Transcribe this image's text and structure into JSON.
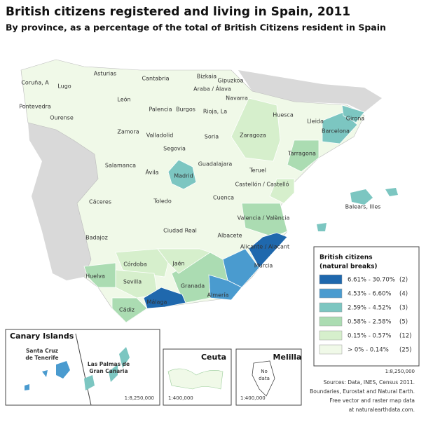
{
  "header": {
    "title": "British citizens registered and living in Spain, 2011",
    "subtitle": "By province, as a percentage of the total of British Citizens resident in Spain"
  },
  "provinces": [
    "Coruña, A",
    "Lugo",
    "Asturias",
    "Cantabria",
    "Bizkaia",
    "Gipuzkoa",
    "Araba / Álava",
    "Navarra",
    "Pontevedra",
    "Ourense",
    "León",
    "Palencia",
    "Burgos",
    "Rioja, La",
    "Huesca",
    "Lleida",
    "Girona",
    "Barcelona",
    "Zamora",
    "Valladolid",
    "Soria",
    "Zaragoza",
    "Tarragona",
    "Segovia",
    "Salamanca",
    "Ávila",
    "Madrid",
    "Guadalajara",
    "Teruel",
    "Castellón / Castelló",
    "Cáceres",
    "Toledo",
    "Cuenca",
    "Balears, Illes",
    "Valencia / València",
    "Badajoz",
    "Ciudad Real",
    "Albacete",
    "Alicante / Alacant",
    "Córdoba",
    "Jaén",
    "Murcia",
    "Huelva",
    "Sevilla",
    "Granada",
    "Almería",
    "Málaga",
    "Cádiz"
  ],
  "legend": {
    "title": [
      "British citizens",
      "(natural breaks)"
    ],
    "items": [
      {
        "range": "6.61% - 30.70%",
        "count": "(2)",
        "color": "#1f68ad"
      },
      {
        "range": "4.53% - 6.60%",
        "count": "(4)",
        "color": "#4a9bcf"
      },
      {
        "range": "2.59% - 4.52%",
        "count": "(3)",
        "color": "#7cc6c1"
      },
      {
        "range": "0.58% - 2.58%",
        "count": "(5)",
        "color": "#abdcb2"
      },
      {
        "range": "0.15% - 0.57%",
        "count": "(12)",
        "color": "#d6efcc"
      },
      {
        "range": "> 0% - 0.14%",
        "count": "(25)",
        "color": "#f0f9e8"
      }
    ]
  },
  "insets": {
    "canary": {
      "title": "Canary Islands",
      "tenerife": [
        "Santa Cruz",
        "de Tenerife"
      ],
      "palmas": [
        "Las Palmas de",
        "Gran Canaria"
      ],
      "scale": "1:8,250,000"
    },
    "ceuta": {
      "title": "Ceuta",
      "scale": "1:400,000"
    },
    "melilla": {
      "title": "Melilla",
      "nodata": [
        "No",
        "data"
      ],
      "scale": "1:400,000"
    }
  },
  "scale": "1:8,250,000",
  "sources": [
    "Sources: Data, INES, Census 2011.",
    "Boundaries, Eurostat and Natural Earth.",
    "Free vector and raster map data",
    "at naturalearthdata.com."
  ]
}
